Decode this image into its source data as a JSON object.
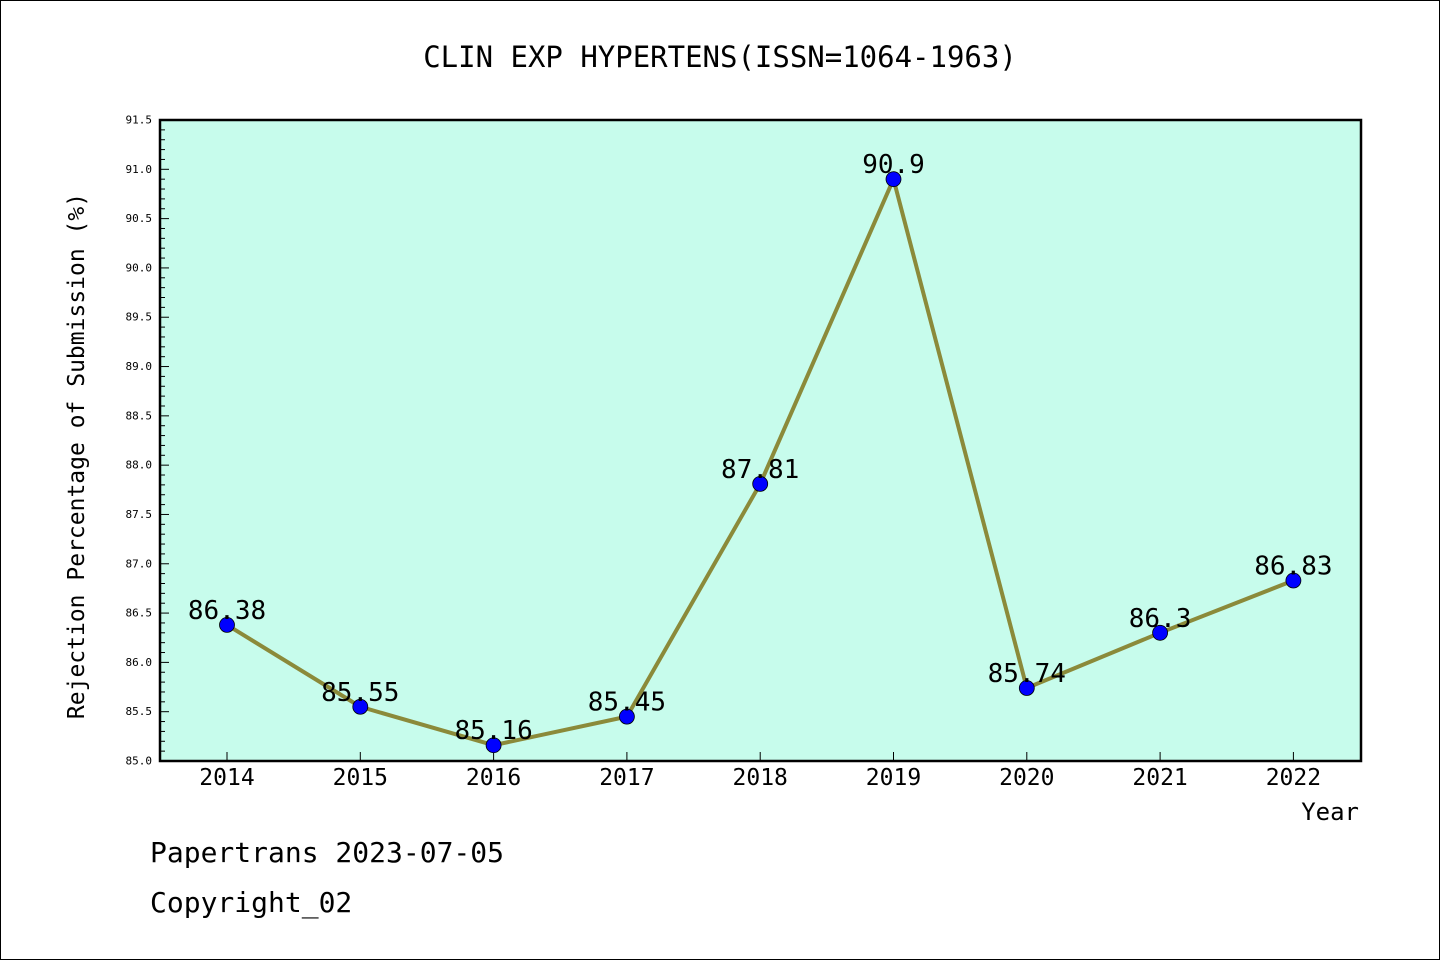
{
  "chart_data": {
    "type": "line",
    "title": "CLIN EXP HYPERTENS(ISSN=1064-1963)",
    "xlabel": "Year",
    "ylabel": "Rejection Percentage of Submission (%)",
    "categories": [
      "2014",
      "2015",
      "2016",
      "2017",
      "2018",
      "2019",
      "2020",
      "2021",
      "2022"
    ],
    "series": [
      {
        "values": [
          86.38,
          85.55,
          85.16,
          85.45,
          87.81,
          90.9,
          85.74,
          86.3,
          86.83
        ],
        "data_labels": [
          "86.38",
          "85.55",
          "85.16",
          "85.45",
          "87.81",
          "90.9",
          "85.74",
          "86.3",
          "86.83"
        ]
      }
    ],
    "ylim": [
      85.0,
      91.5
    ],
    "yticks": [
      "85.0",
      "85.5",
      "86.0",
      "86.5",
      "87.0",
      "87.5",
      "88.0",
      "88.5",
      "89.0",
      "89.5",
      "90.0",
      "90.5",
      "91.0",
      "91.5"
    ],
    "grid": false,
    "colors": {
      "plot_background": "#c7fcec",
      "line": "#8b8a3a",
      "marker": "#0000ff"
    }
  },
  "footer": {
    "source": "Papertrans 2023-07-05",
    "copyright": "Copyright_02"
  }
}
